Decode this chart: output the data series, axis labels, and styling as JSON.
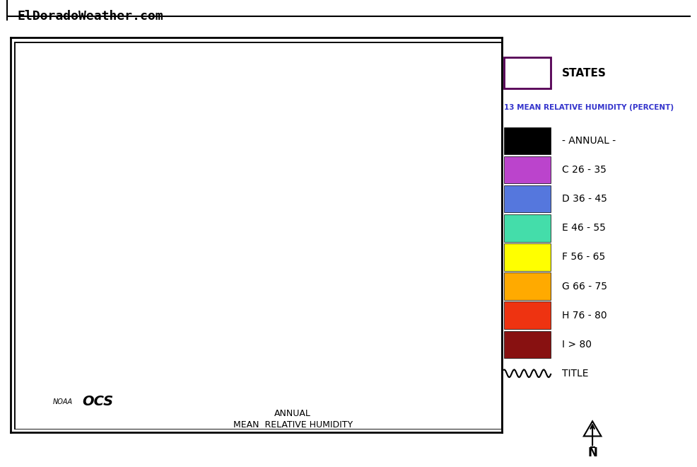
{
  "title_text": "ElDoradoWeather.com",
  "map_title_line1": "ANNUAL",
  "map_title_line2": "MEAN  RELATIVE HUMIDITY",
  "legend_title": "13 MEAN RELATIVE HUMIDITY (PERCENT)",
  "states_label": "STATES",
  "legend_items": [
    {
      "color": "#000000",
      "label": "- ANNUAL -"
    },
    {
      "color": "#bb44cc",
      "label": "C 26 - 35"
    },
    {
      "color": "#5577dd",
      "label": "D 36 - 45"
    },
    {
      "color": "#44ddaa",
      "label": "E 46 - 55"
    },
    {
      "color": "#ffff00",
      "label": "F 56 - 65"
    },
    {
      "color": "#ffaa00",
      "label": "G 66 - 75"
    },
    {
      "color": "#ee3311",
      "label": "H 76 - 80"
    },
    {
      "color": "#881111",
      "label": "I > 80"
    }
  ],
  "background_color": "#ffffff",
  "border_color": "#000000",
  "map_bg": "#ffffff",
  "noaa_ocs_text": "NOAA OCS",
  "title_label": "TITLE",
  "compass_N": "N"
}
